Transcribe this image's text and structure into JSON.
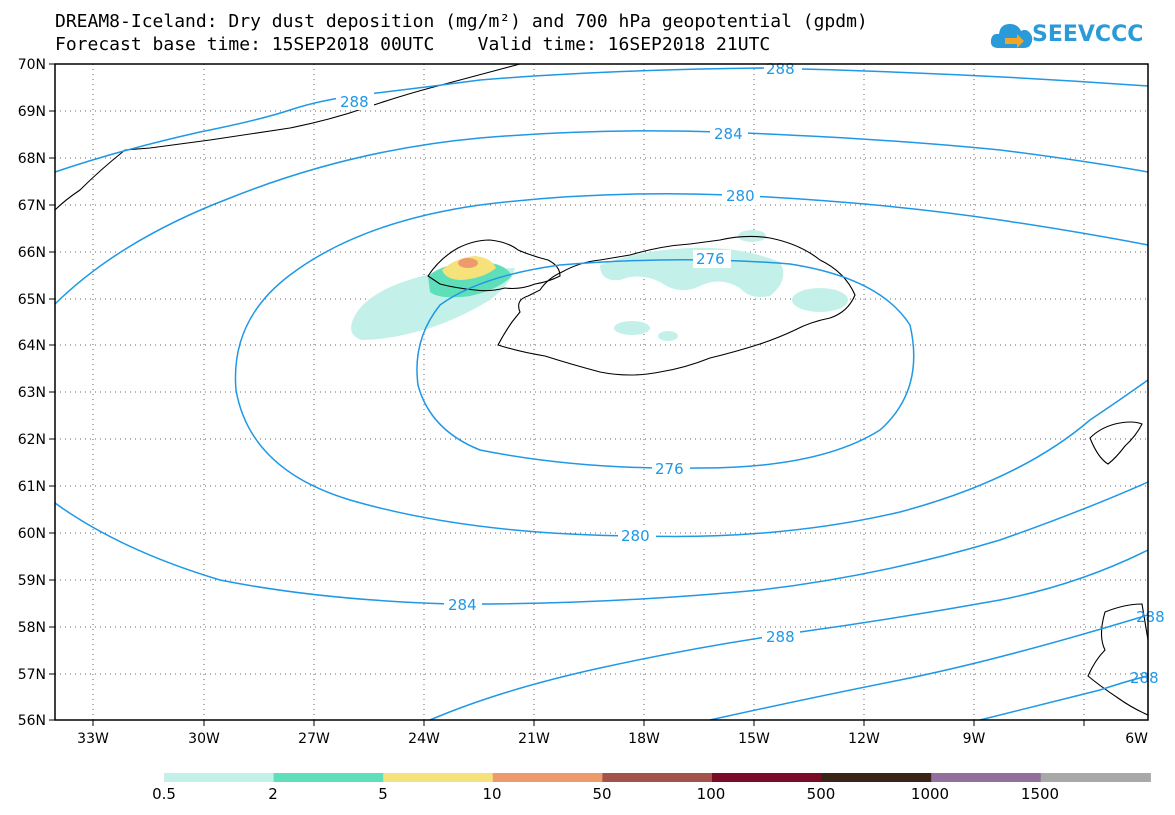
{
  "title": {
    "line1": "DREAM8-Iceland: Dry dust deposition (mg/m²) and 700 hPa geopotential (gpdm)",
    "line2": "Forecast base time: 15SEP2018 00UTC    Valid time: 16SEP2018 21UTC"
  },
  "logo": {
    "text": "SEEVCCC",
    "icon": "cloud-arrow-icon"
  },
  "axes": {
    "y_ticks": [
      "70N",
      "69N",
      "68N",
      "67N",
      "66N",
      "65N",
      "64N",
      "63N",
      "62N",
      "61N",
      "60N",
      "59N",
      "58N",
      "57N",
      "56N"
    ],
    "x_ticks": [
      "33W",
      "30W",
      "27W",
      "24W",
      "21W",
      "18W",
      "15W",
      "12W",
      "9W",
      "6W"
    ]
  },
  "contours": {
    "color": "#1f98e6",
    "labels": [
      "288",
      "288",
      "284",
      "280",
      "276",
      "276",
      "280",
      "284",
      "288",
      "288",
      "288"
    ]
  },
  "legend": {
    "labels": [
      "0.5",
      "2",
      "5",
      "10",
      "50",
      "100",
      "500",
      "1000",
      "1500"
    ],
    "colors": [
      "#c3f1ea",
      "#5fdfb9",
      "#f5e27a",
      "#ed9a6c",
      "#a4534a",
      "#7a0a25",
      "#3a2418",
      "#926f9c",
      "#a8a8a8"
    ]
  }
}
